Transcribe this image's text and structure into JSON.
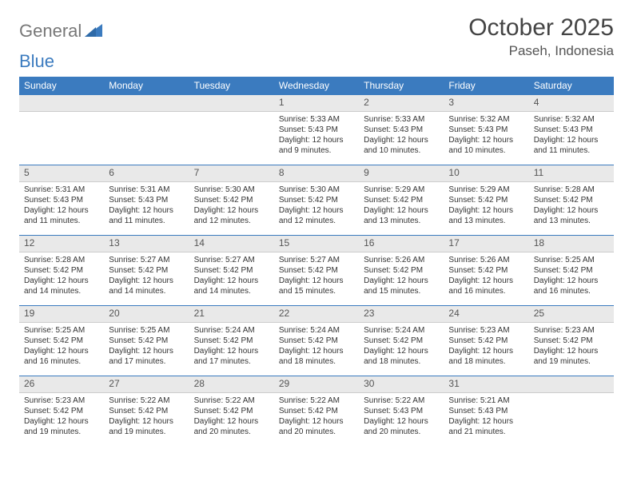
{
  "logo": {
    "text_gray": "General",
    "text_blue": "Blue"
  },
  "title": "October 2025",
  "location": "Paseh, Indonesia",
  "colors": {
    "header_bg": "#3b7bbf",
    "header_text": "#ffffff",
    "daynum_bg": "#e9e9e9",
    "row_border": "#3b7bbf",
    "text": "#333333"
  },
  "days_of_week": [
    "Sunday",
    "Monday",
    "Tuesday",
    "Wednesday",
    "Thursday",
    "Friday",
    "Saturday"
  ],
  "weeks": [
    [
      null,
      null,
      null,
      null,
      {
        "n": "1",
        "sr": "Sunrise: 5:33 AM",
        "ss": "Sunset: 5:43 PM",
        "d1": "Daylight: 12 hours",
        "d2": "and 9 minutes."
      },
      {
        "n": "2",
        "sr": "Sunrise: 5:33 AM",
        "ss": "Sunset: 5:43 PM",
        "d1": "Daylight: 12 hours",
        "d2": "and 10 minutes."
      },
      {
        "n": "3",
        "sr": "Sunrise: 5:32 AM",
        "ss": "Sunset: 5:43 PM",
        "d1": "Daylight: 12 hours",
        "d2": "and 10 minutes."
      },
      {
        "n": "4",
        "sr": "Sunrise: 5:32 AM",
        "ss": "Sunset: 5:43 PM",
        "d1": "Daylight: 12 hours",
        "d2": "and 11 minutes."
      }
    ],
    [
      {
        "n": "5",
        "sr": "Sunrise: 5:31 AM",
        "ss": "Sunset: 5:43 PM",
        "d1": "Daylight: 12 hours",
        "d2": "and 11 minutes."
      },
      {
        "n": "6",
        "sr": "Sunrise: 5:31 AM",
        "ss": "Sunset: 5:43 PM",
        "d1": "Daylight: 12 hours",
        "d2": "and 11 minutes."
      },
      {
        "n": "7",
        "sr": "Sunrise: 5:30 AM",
        "ss": "Sunset: 5:42 PM",
        "d1": "Daylight: 12 hours",
        "d2": "and 12 minutes."
      },
      {
        "n": "8",
        "sr": "Sunrise: 5:30 AM",
        "ss": "Sunset: 5:42 PM",
        "d1": "Daylight: 12 hours",
        "d2": "and 12 minutes."
      },
      {
        "n": "9",
        "sr": "Sunrise: 5:29 AM",
        "ss": "Sunset: 5:42 PM",
        "d1": "Daylight: 12 hours",
        "d2": "and 13 minutes."
      },
      {
        "n": "10",
        "sr": "Sunrise: 5:29 AM",
        "ss": "Sunset: 5:42 PM",
        "d1": "Daylight: 12 hours",
        "d2": "and 13 minutes."
      },
      {
        "n": "11",
        "sr": "Sunrise: 5:28 AM",
        "ss": "Sunset: 5:42 PM",
        "d1": "Daylight: 12 hours",
        "d2": "and 13 minutes."
      }
    ],
    [
      {
        "n": "12",
        "sr": "Sunrise: 5:28 AM",
        "ss": "Sunset: 5:42 PM",
        "d1": "Daylight: 12 hours",
        "d2": "and 14 minutes."
      },
      {
        "n": "13",
        "sr": "Sunrise: 5:27 AM",
        "ss": "Sunset: 5:42 PM",
        "d1": "Daylight: 12 hours",
        "d2": "and 14 minutes."
      },
      {
        "n": "14",
        "sr": "Sunrise: 5:27 AM",
        "ss": "Sunset: 5:42 PM",
        "d1": "Daylight: 12 hours",
        "d2": "and 14 minutes."
      },
      {
        "n": "15",
        "sr": "Sunrise: 5:27 AM",
        "ss": "Sunset: 5:42 PM",
        "d1": "Daylight: 12 hours",
        "d2": "and 15 minutes."
      },
      {
        "n": "16",
        "sr": "Sunrise: 5:26 AM",
        "ss": "Sunset: 5:42 PM",
        "d1": "Daylight: 12 hours",
        "d2": "and 15 minutes."
      },
      {
        "n": "17",
        "sr": "Sunrise: 5:26 AM",
        "ss": "Sunset: 5:42 PM",
        "d1": "Daylight: 12 hours",
        "d2": "and 16 minutes."
      },
      {
        "n": "18",
        "sr": "Sunrise: 5:25 AM",
        "ss": "Sunset: 5:42 PM",
        "d1": "Daylight: 12 hours",
        "d2": "and 16 minutes."
      }
    ],
    [
      {
        "n": "19",
        "sr": "Sunrise: 5:25 AM",
        "ss": "Sunset: 5:42 PM",
        "d1": "Daylight: 12 hours",
        "d2": "and 16 minutes."
      },
      {
        "n": "20",
        "sr": "Sunrise: 5:25 AM",
        "ss": "Sunset: 5:42 PM",
        "d1": "Daylight: 12 hours",
        "d2": "and 17 minutes."
      },
      {
        "n": "21",
        "sr": "Sunrise: 5:24 AM",
        "ss": "Sunset: 5:42 PM",
        "d1": "Daylight: 12 hours",
        "d2": "and 17 minutes."
      },
      {
        "n": "22",
        "sr": "Sunrise: 5:24 AM",
        "ss": "Sunset: 5:42 PM",
        "d1": "Daylight: 12 hours",
        "d2": "and 18 minutes."
      },
      {
        "n": "23",
        "sr": "Sunrise: 5:24 AM",
        "ss": "Sunset: 5:42 PM",
        "d1": "Daylight: 12 hours",
        "d2": "and 18 minutes."
      },
      {
        "n": "24",
        "sr": "Sunrise: 5:23 AM",
        "ss": "Sunset: 5:42 PM",
        "d1": "Daylight: 12 hours",
        "d2": "and 18 minutes."
      },
      {
        "n": "25",
        "sr": "Sunrise: 5:23 AM",
        "ss": "Sunset: 5:42 PM",
        "d1": "Daylight: 12 hours",
        "d2": "and 19 minutes."
      }
    ],
    [
      {
        "n": "26",
        "sr": "Sunrise: 5:23 AM",
        "ss": "Sunset: 5:42 PM",
        "d1": "Daylight: 12 hours",
        "d2": "and 19 minutes."
      },
      {
        "n": "27",
        "sr": "Sunrise: 5:22 AM",
        "ss": "Sunset: 5:42 PM",
        "d1": "Daylight: 12 hours",
        "d2": "and 19 minutes."
      },
      {
        "n": "28",
        "sr": "Sunrise: 5:22 AM",
        "ss": "Sunset: 5:42 PM",
        "d1": "Daylight: 12 hours",
        "d2": "and 20 minutes."
      },
      {
        "n": "29",
        "sr": "Sunrise: 5:22 AM",
        "ss": "Sunset: 5:42 PM",
        "d1": "Daylight: 12 hours",
        "d2": "and 20 minutes."
      },
      {
        "n": "30",
        "sr": "Sunrise: 5:22 AM",
        "ss": "Sunset: 5:43 PM",
        "d1": "Daylight: 12 hours",
        "d2": "and 20 minutes."
      },
      {
        "n": "31",
        "sr": "Sunrise: 5:21 AM",
        "ss": "Sunset: 5:43 PM",
        "d1": "Daylight: 12 hours",
        "d2": "and 21 minutes."
      },
      null
    ]
  ]
}
